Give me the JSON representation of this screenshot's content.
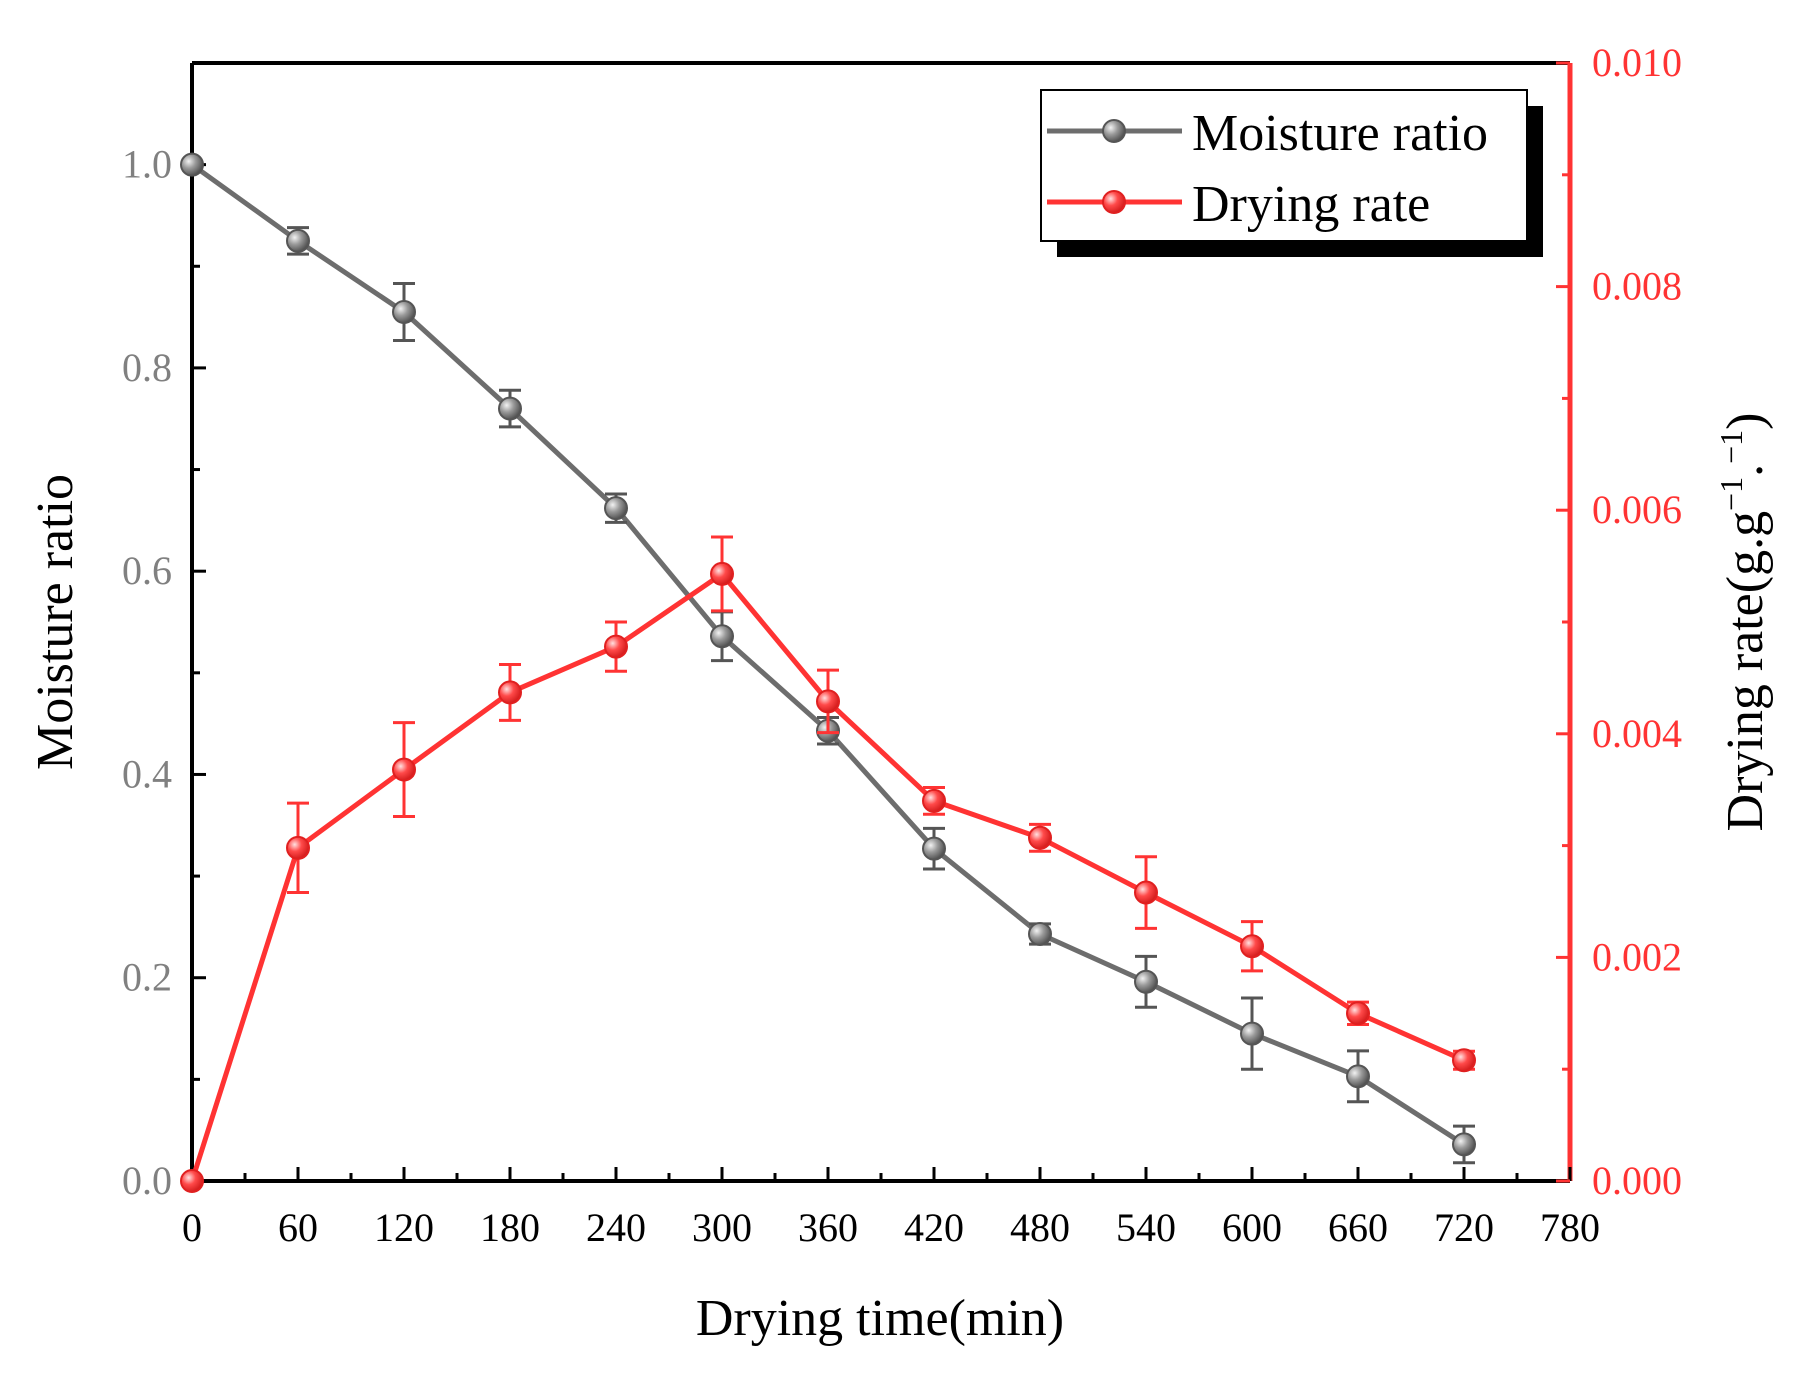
{
  "chart_data": {
    "type": "line",
    "title": "",
    "xlabel": "Drying time(min)",
    "ylabel_left": "Moisture ratio",
    "ylabel_right": "Drying rate(g.g",
    "ylabel_right_sup1": "−1",
    "ylabel_right_mid": ".",
    "ylabel_right_sup2": "−1",
    "ylabel_right_end": ")",
    "xlim": [
      0,
      780
    ],
    "ylim_left": [
      0,
      1.1
    ],
    "ylim_right": [
      0,
      0.01
    ],
    "x_ticks": [
      0,
      60,
      120,
      180,
      240,
      300,
      360,
      420,
      480,
      540,
      600,
      660,
      720,
      780
    ],
    "y_ticks_left": [
      0.0,
      0.2,
      0.4,
      0.6,
      0.8,
      1.0
    ],
    "y_ticks_left_labels": [
      "0.0",
      "0.2",
      "0.4",
      "0.6",
      "0.8",
      "1.0"
    ],
    "y_ticks_right": [
      0,
      0.002,
      0.004,
      0.006,
      0.008,
      0.01
    ],
    "y_ticks_right_labels": [
      "0.000",
      "0.002",
      "0.004",
      "0.006",
      "0.008",
      "0.010"
    ],
    "legend_position": "top-right",
    "series": [
      {
        "name": "Moisture ratio",
        "axis": "left",
        "color": "#6d6d6d",
        "x": [
          0,
          60,
          120,
          180,
          240,
          300,
          360,
          420,
          480,
          540,
          600,
          660,
          720
        ],
        "y": [
          1.0,
          0.925,
          0.855,
          0.76,
          0.662,
          0.536,
          0.443,
          0.327,
          0.243,
          0.196,
          0.145,
          0.103,
          0.036
        ],
        "err": [
          0.0,
          0.013,
          0.028,
          0.018,
          0.014,
          0.024,
          0.013,
          0.02,
          0.01,
          0.025,
          0.035,
          0.025,
          0.018
        ]
      },
      {
        "name": "Drying rate",
        "axis": "right",
        "color": "#ff3333",
        "x": [
          0,
          60,
          120,
          180,
          240,
          300,
          360,
          420,
          480,
          540,
          600,
          660,
          720
        ],
        "y": [
          0.0,
          0.00298,
          0.00368,
          0.00437,
          0.00478,
          0.00543,
          0.00429,
          0.0034,
          0.00307,
          0.00258,
          0.0021,
          0.0015,
          0.00108
        ],
        "err": [
          0.0,
          0.0004,
          0.00042,
          0.00025,
          0.00022,
          0.00033,
          0.00028,
          0.00012,
          0.00012,
          0.00032,
          0.00022,
          0.0001,
          8e-05
        ]
      }
    ]
  }
}
